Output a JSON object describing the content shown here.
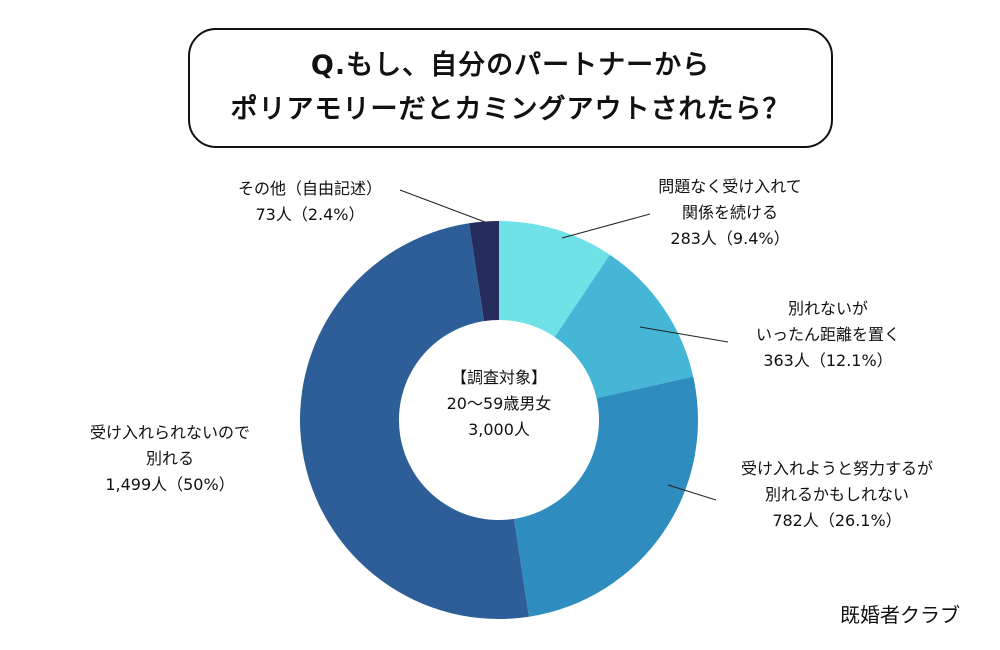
{
  "title": {
    "line1": "Q.もし、自分のパートナーから",
    "line2": "ポリアモリーだとカミングアウトされたら？"
  },
  "chart_data": {
    "type": "pie",
    "donut": true,
    "title": "Q.もし、自分のパートナーから ポリアモリーだとカミングアウトされたら？",
    "center_text": [
      "【調査対象】",
      "20〜59歳男女",
      "3,000人"
    ],
    "slices": [
      {
        "label_lines": [
          "問題なく受け入れて",
          "関係を続ける"
        ],
        "count_label": "283人（9.4%）",
        "count": 283,
        "percent": 9.4,
        "color": "#6ee2e7"
      },
      {
        "label_lines": [
          "別れないが",
          "いったん距離を置く"
        ],
        "count_label": "363人（12.1%）",
        "count": 363,
        "percent": 12.1,
        "color": "#45b6d6"
      },
      {
        "label_lines": [
          "受け入れようと努力するが",
          "別れるかもしれない"
        ],
        "count_label": "782人（26.1%）",
        "count": 782,
        "percent": 26.1,
        "color": "#2f8cbf"
      },
      {
        "label_lines": [
          "受け入れられないので",
          "別れる"
        ],
        "count_label": "1,499人（50%）",
        "count": 1499,
        "percent": 50,
        "color": "#2d5e97"
      },
      {
        "label_lines": [
          "その他（自由記述）"
        ],
        "count_label": "73人（2.4%）",
        "count": 73,
        "percent": 2.4,
        "color": "#262d5d"
      }
    ]
  },
  "brand": "既婚者クラブ"
}
